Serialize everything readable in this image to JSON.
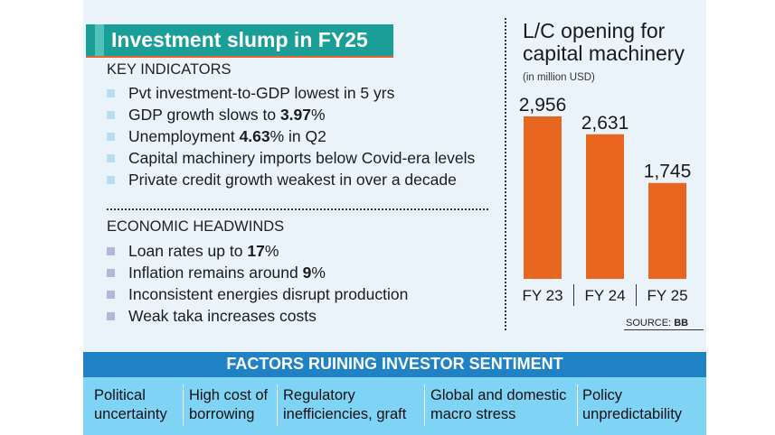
{
  "title": "Investment slump in FY25",
  "key_indicators": {
    "heading": "KEY INDICATORS",
    "bullet_color": "#b9ddf0",
    "items": [
      {
        "pre": "Pvt investment-to-GDP lowest in 5 yrs",
        "bold": "",
        "post": ""
      },
      {
        "pre": "GDP growth slows to ",
        "bold": "3.97",
        "post": "%"
      },
      {
        "pre": "Unemployment ",
        "bold": "4.63",
        "post": "% in Q2"
      },
      {
        "pre": "Capital machinery imports below Covid-era levels",
        "bold": "",
        "post": ""
      },
      {
        "pre": "Private credit growth weakest in over a decade",
        "bold": "",
        "post": ""
      }
    ]
  },
  "economic_headwinds": {
    "heading": "ECONOMIC HEADWINDS",
    "bullet_color": "#b4b8d8",
    "items": [
      {
        "pre": "Loan rates up to ",
        "bold": "17",
        "post": "%"
      },
      {
        "pre": "Inflation remains around ",
        "bold": "9",
        "post": "%"
      },
      {
        "pre": "Inconsistent energies disrupt production",
        "bold": "",
        "post": ""
      },
      {
        "pre": "Weak taka increases costs",
        "bold": "",
        "post": ""
      }
    ]
  },
  "chart_data": {
    "type": "bar",
    "title_lines": [
      "L/C opening for",
      "capital machinery"
    ],
    "unit": "(in million USD)",
    "categories": [
      "FY 23",
      "FY 24",
      "FY 25"
    ],
    "values": [
      2956,
      2631,
      1745
    ],
    "value_labels": [
      "2,956",
      "2,631",
      "1,745"
    ],
    "ylim": [
      0,
      3300
    ],
    "bar_color": "#e8661f",
    "source_label": "SOURCE: ",
    "source_value": "BB"
  },
  "factors": {
    "title": "FACTORS RUINING INVESTOR SENTIMENT",
    "items": [
      [
        "Political",
        "uncertainty"
      ],
      [
        "High cost of",
        "borrowing"
      ],
      [
        "Regulatory",
        "inefficiencies, graft"
      ],
      [
        "Global and domestic",
        "macro stress"
      ],
      [
        "Policy",
        "unpredictability"
      ]
    ]
  }
}
